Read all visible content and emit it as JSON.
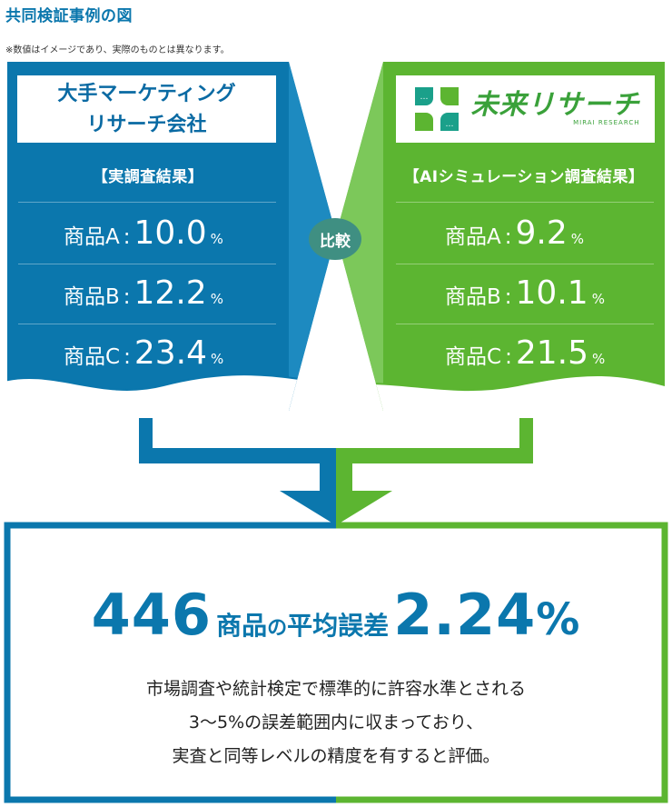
{
  "heading": "共同検証事例の図",
  "note": "※数値はイメージであり、実際のものとは異なります。",
  "left": {
    "name_line1": "大手マーケティング",
    "name_line2": "リサーチ会社",
    "section_title": "【実調査結果】",
    "rows": [
      {
        "label": "商品A",
        "value": "10.0",
        "unit": "%"
      },
      {
        "label": "商品B",
        "value": "12.2",
        "unit": "%"
      },
      {
        "label": "商品C",
        "value": "23.4",
        "unit": "%"
      }
    ]
  },
  "right": {
    "logo_text": "未来リサーチ",
    "logo_sub": "MIRAI RESEARCH",
    "section_title": "【AIシミュレーション調査結果】",
    "rows": [
      {
        "label": "商品A",
        "value": "9.2",
        "unit": "%"
      },
      {
        "label": "商品B",
        "value": "10.1",
        "unit": "%"
      },
      {
        "label": "商品C",
        "value": "21.5",
        "unit": "%"
      }
    ]
  },
  "compare_label": "比較",
  "result": {
    "count": "446",
    "count_suffix": "商品",
    "particle": "の",
    "metric": "平均誤差",
    "error_value": "2.24",
    "error_unit": "%",
    "desc_line1": "市場調査や統計検定で標準的に許容水準とされる",
    "desc_line2": "3～5%の誤差範囲内に収まっており、",
    "desc_line3": "実査と同等レベルの精度を有すると評価。"
  },
  "colors": {
    "blue": "#0b77ad",
    "blue_light": "#1d8ac0",
    "green": "#5cb531",
    "green_light": "#7cc85a",
    "compare_badge": "#3f8f82"
  }
}
